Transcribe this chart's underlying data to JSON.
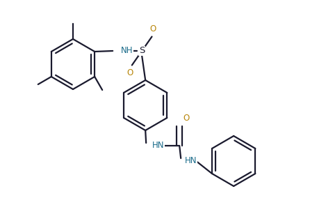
{
  "bg_color": "#ffffff",
  "bond_color": "#1a1a2e",
  "label_color": "#1a1a2e",
  "nh_color": "#1a6b8a",
  "o_color": "#b8860b",
  "lw": 1.6,
  "fig_width": 4.46,
  "fig_height": 3.17,
  "dpi": 100,
  "xlim": [
    0.0,
    4.46
  ],
  "ylim": [
    0.0,
    3.17
  ]
}
